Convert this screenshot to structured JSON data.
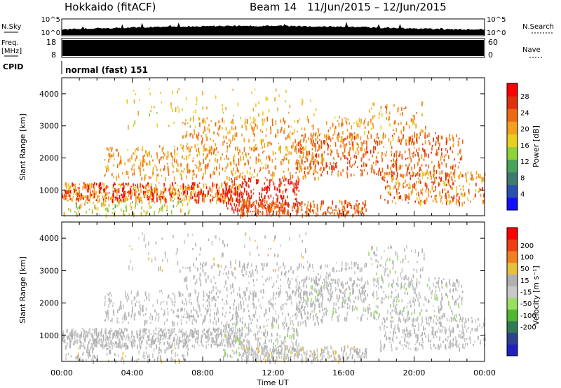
{
  "header": {
    "station": "Hokkaido (fitACF)",
    "beam": "Beam 14",
    "dates": "11/Jun/2015 – 12/Jun/2015"
  },
  "top_panels": {
    "nsky_label": "N.Sky",
    "nsky_tick_top": "10^5",
    "nsky_tick_bottom": "10^0",
    "nsearch_label": "N.Search",
    "nsearch_tick_top": "10^5",
    "nsearch_tick_bottom": "10^0",
    "freq_label_1": "Freq.",
    "freq_label_2": "[MHz]",
    "freq_ticks": [
      "18",
      "8"
    ],
    "nave_label": "Nave",
    "nave_ticks": [
      "60",
      "0"
    ],
    "cpid_label": "CPID",
    "cpid_value": "normal (fast) 151"
  },
  "chart_data": [
    {
      "type": "heatmap",
      "panel": "power",
      "xlabel": "",
      "ylabel": "Slant Range [km]",
      "x_ticks": [
        "00:00",
        "04:00",
        "08:00",
        "12:00",
        "16:00",
        "20:00",
        "00:00"
      ],
      "y_ticks": [
        1000,
        2000,
        3000,
        4000
      ],
      "ylim": [
        200,
        4500
      ],
      "colorbar_label": "Power [dB]",
      "colorbar_ticks": [
        "4",
        "8",
        "12",
        "16",
        "20",
        "24",
        "28"
      ],
      "colors": [
        "#1010ff",
        "#2a4fb0",
        "#3d7a6f",
        "#4aa35a",
        "#8fd23a",
        "#e8d020",
        "#f2a020",
        "#ee6a10",
        "#e03010",
        "#ff0000"
      ]
    },
    {
      "type": "heatmap",
      "panel": "velocity",
      "xlabel": "Time UT",
      "ylabel": "Slant Range [km]",
      "x_ticks": [
        "00:00",
        "04:00",
        "08:00",
        "12:00",
        "16:00",
        "20:00",
        "00:00"
      ],
      "y_ticks": [
        1000,
        2000,
        3000,
        4000
      ],
      "ylim": [
        200,
        4500
      ],
      "colorbar_label": "Velocity [m s⁻¹]",
      "colorbar_ticks": [
        "200",
        "100",
        "50",
        "15",
        "-15",
        "-50",
        "-100",
        "-200"
      ],
      "colors": [
        "#2020c0",
        "#304090",
        "#2f7a55",
        "#4fb830",
        "#9ae060",
        "#c8c8c8",
        "#b0b0b0",
        "#e8c040",
        "#f08020",
        "#ee4010",
        "#ff0000"
      ]
    }
  ]
}
